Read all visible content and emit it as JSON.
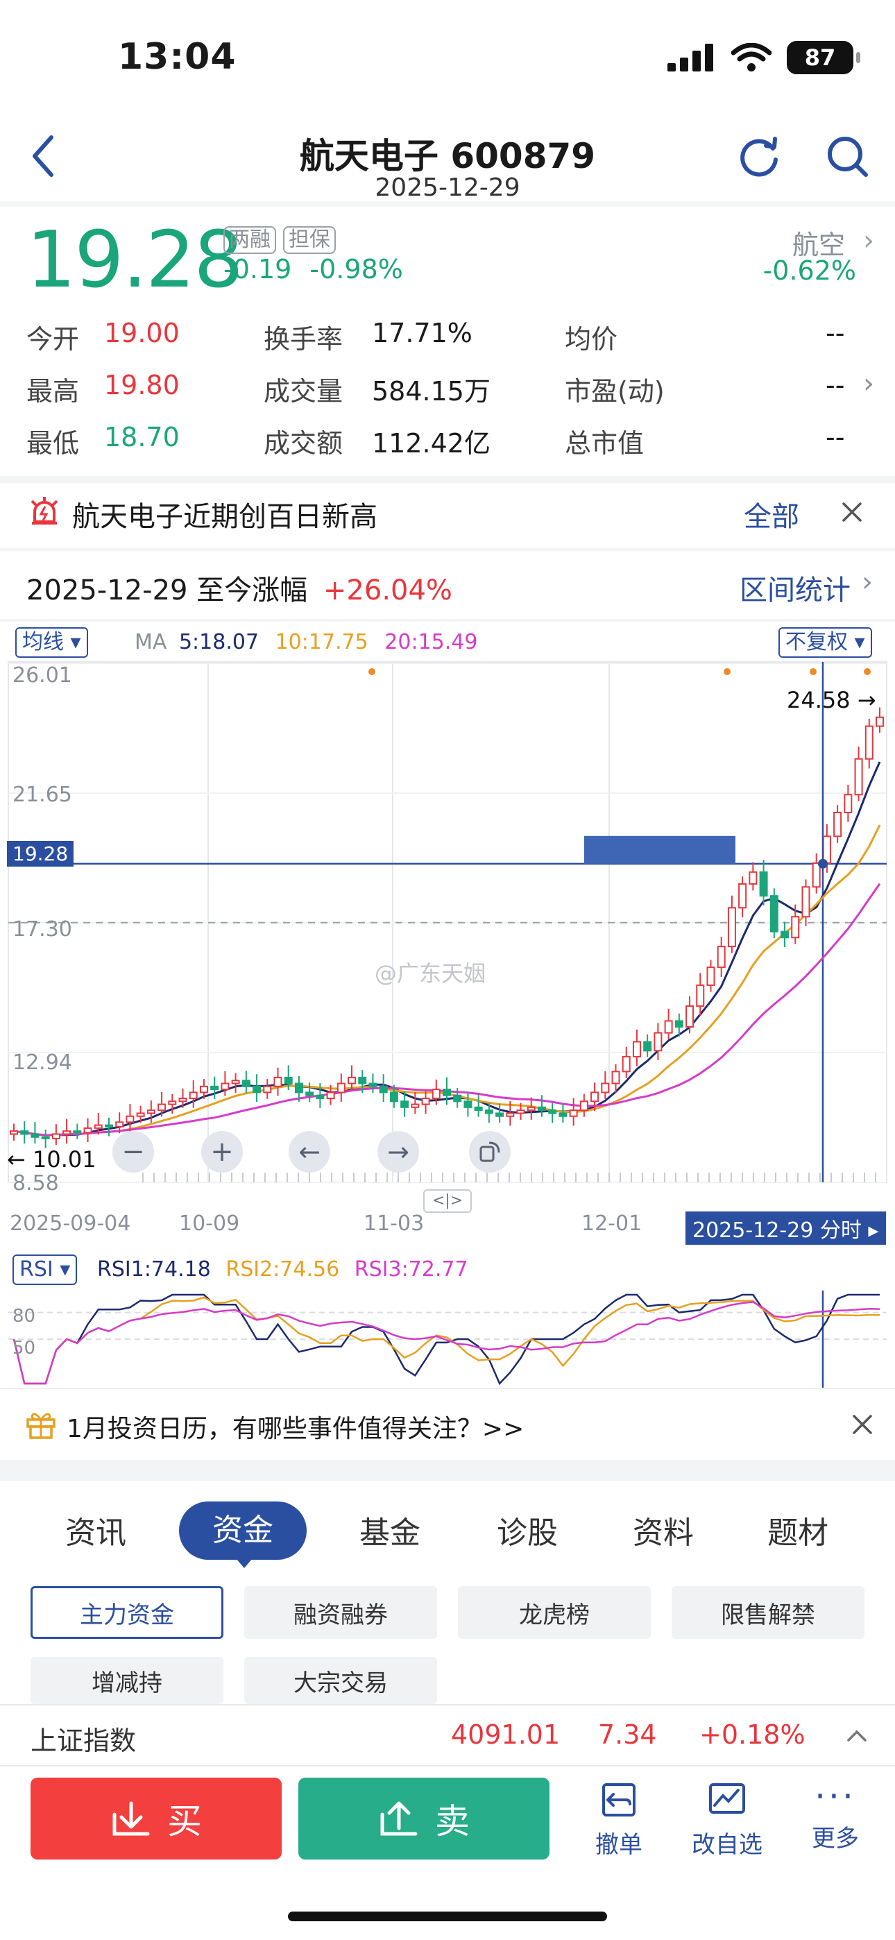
{
  "status_bar": {
    "time": "13:04",
    "battery": "87"
  },
  "header": {
    "title": "航天电子 600879",
    "date": "2025-12-29"
  },
  "quote": {
    "price": "19.28",
    "tag_margin": "两融",
    "tag_collateral": "担保",
    "change": "-0.19",
    "change_pct": "-0.98%",
    "sector_name": "航空",
    "sector_change": "-0.62%"
  },
  "stats": [
    {
      "label": "今开",
      "value": "19.00"
    },
    {
      "label": "最高",
      "value": "19.80"
    },
    {
      "label": "最低",
      "value": "18.70"
    },
    {
      "label": "换手率",
      "value": "17.71%"
    },
    {
      "label": "成交量",
      "value": "584.15万"
    },
    {
      "label": "成交额",
      "value": "112.42亿"
    },
    {
      "label": "均价",
      "value": "--"
    },
    {
      "label": "市盈(动)",
      "value": "--"
    },
    {
      "label": "总市值",
      "value": "--"
    }
  ],
  "notice": {
    "text": "航天电子近期创百日新高",
    "all_label": "全部"
  },
  "range": {
    "text": "2025-12-29 至今涨幅",
    "pct": "+26.04%",
    "stats_label": "区间统计"
  },
  "chart_toolbar": {
    "ma_selector": "均线",
    "ma_label": "MA",
    "ma5": "5:18.07",
    "ma10": "10:17.75",
    "ma20": "20:15.49",
    "adjust_selector": "不复权"
  },
  "chart_labels": {
    "y_ticks": [
      "26.01",
      "21.65",
      "17.30",
      "12.94",
      "8.58"
    ],
    "current_price_tag": "19.28",
    "high_marker": "24.58",
    "low_marker": "10.01",
    "x_ticks": [
      "2025-09-04",
      "10-09",
      "11-03",
      "12-01"
    ],
    "cursor_date": "2025-12-29 分时",
    "watermark": "@广东天姻",
    "pan_toggle": "<|>"
  },
  "rsi": {
    "selector": "RSI",
    "rsi1": "RSI1:74.18",
    "rsi2": "RSI2:74.56",
    "rsi3": "RSI3:72.77",
    "levels": [
      "80",
      "50"
    ]
  },
  "chart_data": {
    "type": "candlestick",
    "title": "",
    "x_ticks": [
      "2025-09-04",
      "10-09",
      "11-03",
      "12-01",
      "2025-12-29"
    ],
    "ylim": [
      8.58,
      26.01
    ],
    "y_ticks": [
      26.01,
      21.65,
      17.3,
      12.94,
      8.58
    ],
    "reference_line": 19.28,
    "dashed_line": 17.3,
    "highest": 24.58,
    "lowest": 10.01,
    "close_series": [
      10.3,
      10.2,
      10.1,
      10.05,
      10.2,
      10.3,
      10.25,
      10.4,
      10.5,
      10.45,
      10.6,
      10.8,
      10.9,
      11.0,
      11.2,
      11.3,
      11.4,
      11.6,
      11.8,
      11.7,
      11.9,
      12.0,
      11.8,
      11.6,
      11.8,
      12.1,
      11.9,
      11.6,
      11.5,
      11.4,
      11.6,
      11.9,
      12.1,
      11.9,
      11.8,
      11.6,
      11.3,
      11.1,
      11.2,
      11.4,
      11.7,
      11.5,
      11.3,
      11.1,
      11.0,
      10.9,
      10.8,
      10.9,
      11.0,
      11.1,
      11.0,
      10.9,
      10.8,
      11.0,
      11.3,
      11.6,
      11.9,
      12.3,
      12.8,
      13.3,
      13.0,
      13.6,
      14.0,
      13.8,
      14.5,
      15.2,
      15.8,
      16.5,
      17.8,
      18.6,
      19.0,
      18.2,
      17.0,
      16.8,
      17.5,
      18.5,
      19.3,
      20.2,
      21.0,
      21.6,
      22.8,
      23.9,
      24.2
    ],
    "series": [
      {
        "name": "MA5",
        "value": 18.07,
        "color": "#1c2a6e"
      },
      {
        "name": "MA10",
        "value": 17.75,
        "color": "#e6a020"
      },
      {
        "name": "MA20",
        "value": 15.49,
        "color": "#d63bc9"
      }
    ],
    "rsi": {
      "rsi1": 74.18,
      "rsi2": 74.56,
      "rsi3": 72.77,
      "levels": [
        80,
        50
      ]
    }
  },
  "calendar_notice": {
    "text": "1月投资日历，有哪些事件值得关注？>>"
  },
  "main_tabs": [
    "资讯",
    "资金",
    "基金",
    "诊股",
    "资料",
    "题材"
  ],
  "sub_tabs": [
    "主力资金",
    "融资融券",
    "龙虎榜",
    "限售解禁",
    "增减持",
    "大宗交易"
  ],
  "index_bar": {
    "name": "上证指数",
    "value": "4091.01",
    "change": "7.34",
    "change_pct": "+0.18%"
  },
  "actions": {
    "buy": "买",
    "sell": "卖",
    "cancel": "撤单",
    "watchlist": "改自选",
    "more": "更多"
  },
  "colors": {
    "up": "#e8363d",
    "down": "#1aa67a",
    "brand": "#2b4fa0"
  }
}
